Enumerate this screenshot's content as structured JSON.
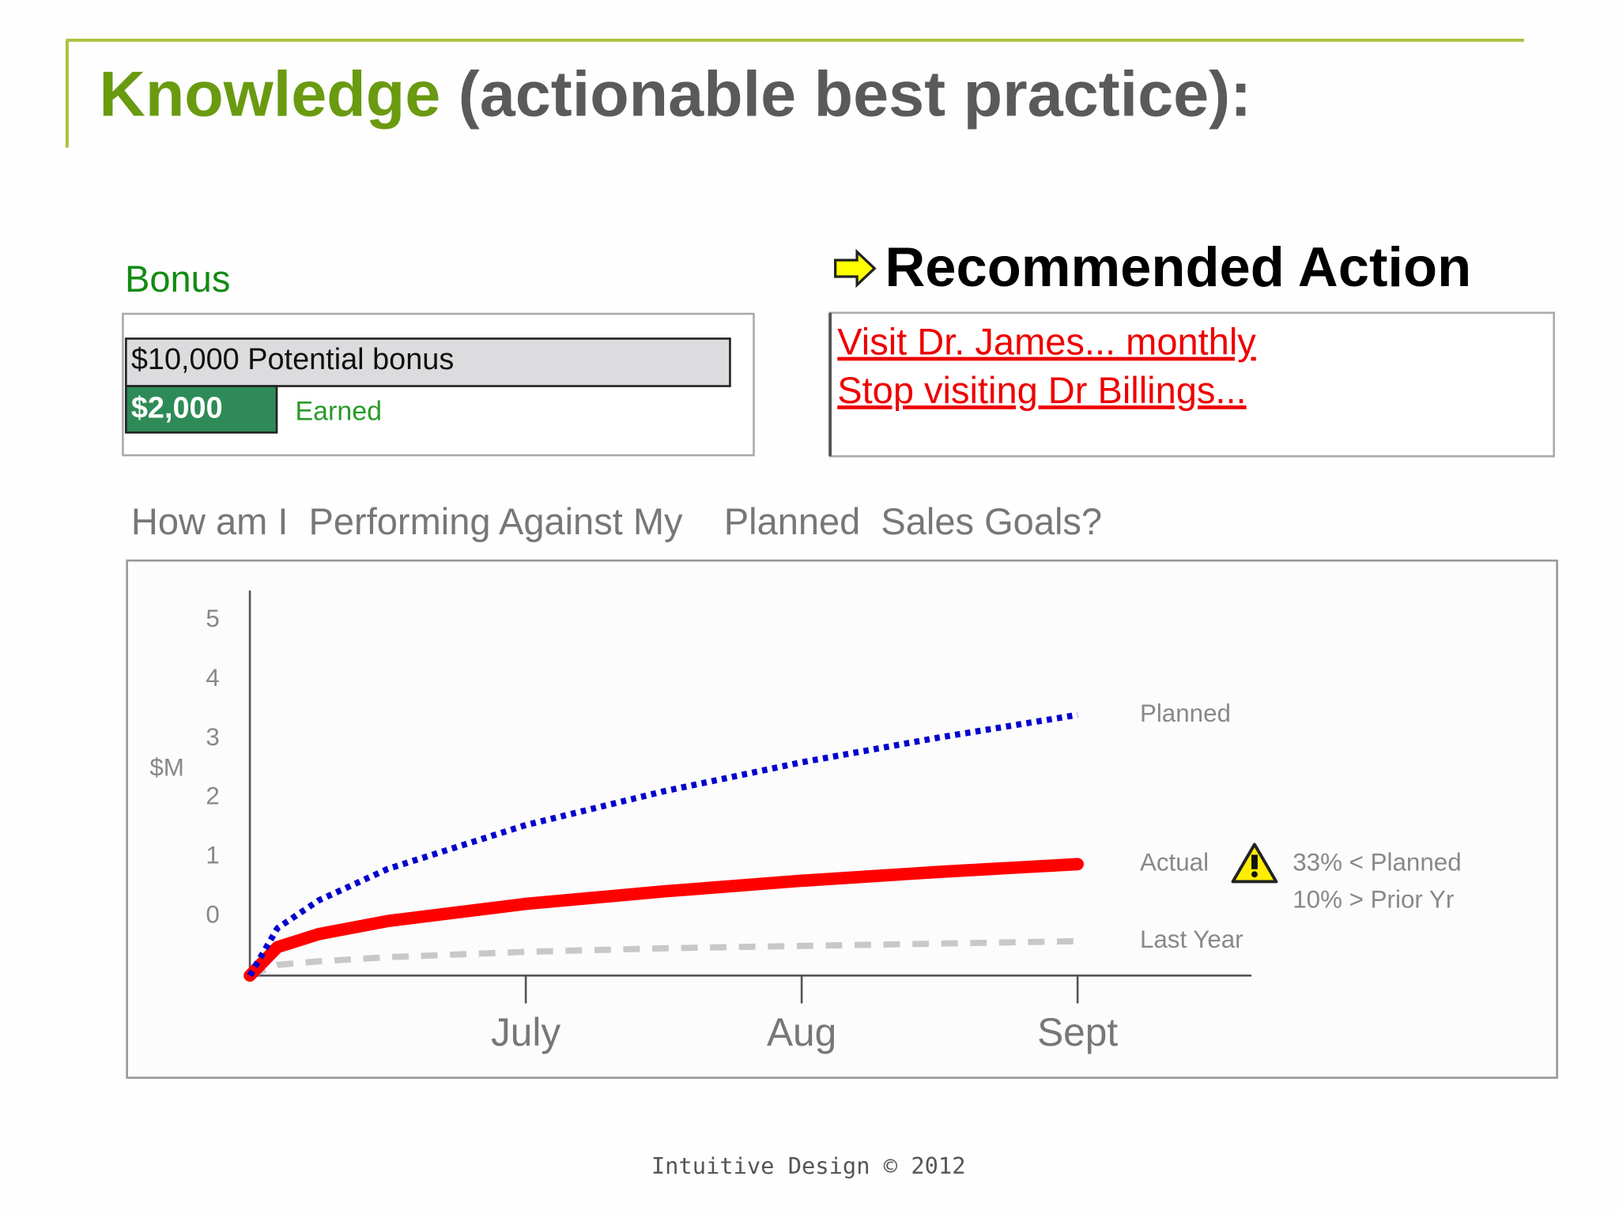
{
  "header": {
    "title_highlight": "Knowledge",
    "title_rest": " (actionable best practice):"
  },
  "bonus": {
    "title": "Bonus",
    "potential": "$10,000 Potential bonus",
    "earned_amount": "$2,000",
    "earned_label": "Earned"
  },
  "recommended_action": {
    "title": "Recommended Action",
    "links": [
      "Visit Dr. James... monthly",
      "Stop visiting Dr Billings..."
    ]
  },
  "chart_data": {
    "type": "line",
    "title": "How am I  Performing Against My    Planned  Sales Goals?",
    "ylabel": "$M",
    "x": [
      0,
      0.1,
      0.25,
      0.5,
      1,
      1.5,
      2,
      2.5,
      3
    ],
    "xlim": [
      0,
      3.63
    ],
    "xticks": [
      {
        "value": 1,
        "label": "July"
      },
      {
        "value": 2,
        "label": "Aug"
      },
      {
        "value": 3,
        "label": "Sept"
      }
    ],
    "ylim": [
      -1,
      5.5
    ],
    "yticks": [
      0,
      1,
      2,
      3,
      4,
      5
    ],
    "series": [
      {
        "name": "Planned",
        "color": "#0000cc",
        "line_style": "dotted",
        "values": [
          -1,
          -0.2,
          0.27,
          0.8,
          1.54,
          2.11,
          2.6,
          3.02,
          3.4
        ]
      },
      {
        "name": "Actual",
        "color": "#ff0000",
        "line_style": "solid",
        "values": [
          -1,
          -0.52,
          -0.3,
          -0.08,
          0.21,
          0.42,
          0.6,
          0.75,
          0.88
        ]
      },
      {
        "name": "Last Year",
        "color": "#c8c8c8",
        "line_style": "dashed",
        "values": [
          -1,
          -0.82,
          -0.76,
          -0.69,
          -0.6,
          -0.54,
          -0.5,
          -0.46,
          -0.42
        ]
      }
    ],
    "annotations": [
      "33% < Planned",
      "10% > Prior Yr"
    ]
  },
  "footer": "Intuitive Design © 2012"
}
